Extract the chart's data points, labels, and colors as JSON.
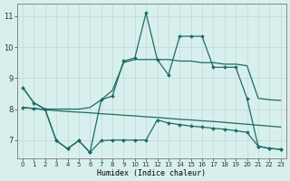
{
  "xlabel": "Humidex (Indice chaleur)",
  "background_color": "#d8f0ed",
  "grid_color": "#c4dbd8",
  "line_color": "#1e6b65",
  "xlim": [
    -0.5,
    23.5
  ],
  "ylim": [
    6.4,
    11.4
  ],
  "yticks": [
    7,
    8,
    9,
    10,
    11
  ],
  "xticks": [
    0,
    1,
    2,
    3,
    4,
    5,
    6,
    7,
    8,
    9,
    10,
    11,
    12,
    13,
    14,
    15,
    16,
    17,
    18,
    19,
    20,
    21,
    22,
    23
  ],
  "x": [
    0,
    1,
    2,
    3,
    4,
    5,
    6,
    7,
    8,
    9,
    10,
    11,
    12,
    13,
    14,
    15,
    16,
    17,
    18,
    19,
    20,
    21,
    22,
    23
  ],
  "line_smooth_top": [
    8.7,
    8.2,
    8.0,
    8.0,
    8.0,
    8.0,
    8.05,
    8.3,
    8.6,
    9.5,
    9.6,
    9.6,
    9.6,
    9.6,
    9.55,
    9.55,
    9.5,
    9.5,
    9.45,
    9.45,
    9.4,
    8.35,
    8.3,
    8.28
  ],
  "line_marker_top": [
    8.7,
    8.2,
    8.0,
    6.98,
    6.72,
    6.98,
    6.6,
    8.3,
    8.42,
    9.55,
    9.65,
    11.1,
    9.6,
    9.1,
    10.35,
    10.35,
    10.35,
    9.35,
    9.35,
    9.35,
    8.35,
    6.8,
    6.73,
    6.7
  ],
  "line_smooth_bot": [
    8.05,
    8.02,
    7.98,
    7.95,
    7.92,
    7.9,
    7.88,
    7.85,
    7.83,
    7.8,
    7.78,
    7.75,
    7.73,
    7.7,
    7.67,
    7.65,
    7.62,
    7.6,
    7.57,
    7.54,
    7.51,
    7.48,
    7.45,
    7.42
  ],
  "line_marker_bot": [
    8.05,
    8.02,
    7.98,
    6.98,
    6.72,
    6.98,
    6.6,
    6.98,
    7.0,
    7.0,
    7.0,
    7.0,
    7.65,
    7.55,
    7.5,
    7.45,
    7.42,
    7.38,
    7.35,
    7.3,
    7.25,
    6.8,
    6.73,
    6.7
  ]
}
